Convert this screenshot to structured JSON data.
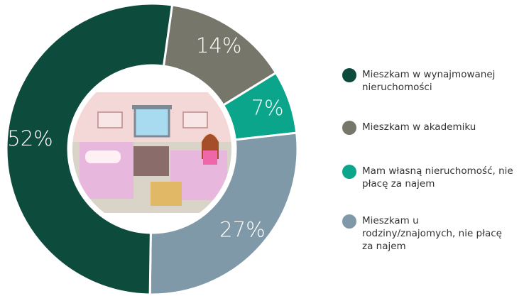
{
  "chart_data": {
    "type": "donut",
    "categories": [
      "Mieszkam w wynajmowanej nieruchomości",
      "Mieszkam w akademiku",
      "Mam własną nieruchomość, nie płacę za najem",
      "Mieszkam u rodziny/znajomych, nie płacę za najem"
    ],
    "values": [
      52,
      14,
      7,
      27
    ],
    "value_labels": [
      "52%",
      "14%",
      "7%",
      "27%"
    ],
    "colors": [
      "#0d4b3c",
      "#76776a",
      "#0aa58a",
      "#8099a8"
    ]
  }
}
